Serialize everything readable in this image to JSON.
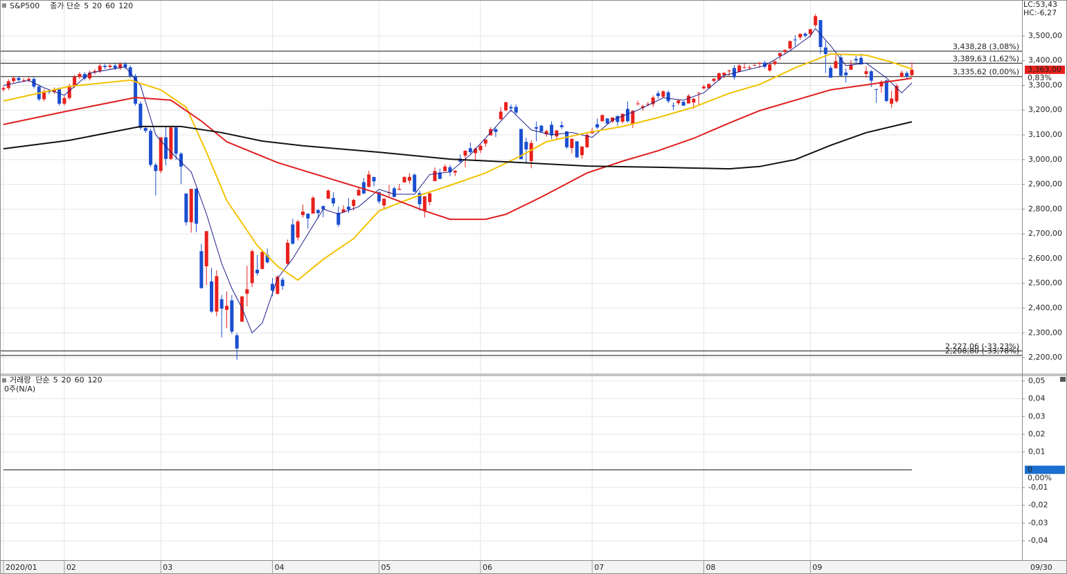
{
  "chart_data": [
    {
      "type": "candlestick",
      "title": "S&P500",
      "ma_label": "종가 단순",
      "up_color": "#e8201c",
      "down_color": "#1a4fd0",
      "open": [
        3283,
        3289,
        3317,
        3330,
        3321,
        3321,
        3326,
        3295,
        3244,
        3276,
        3273,
        3284,
        3226,
        3249,
        3298,
        3334,
        3346,
        3328,
        3352,
        3358,
        3379,
        3374,
        3380,
        3370,
        3386,
        3373,
        3338,
        3226,
        3128,
        3116,
        2979,
        2954,
        3090,
        3003,
        3130,
        3024,
        2863,
        2747,
        2882,
        2630,
        2569,
        2508,
        2386,
        2436,
        2393,
        2431,
        2290,
        2345,
        2458,
        2501,
        2555,
        2558,
        2614,
        2498,
        2458,
        2515,
        2579,
        2738,
        2685,
        2776,
        2782,
        2782,
        2796,
        2812,
        2842,
        2845,
        2785,
        2787,
        2810,
        2813,
        2855,
        2909,
        2890,
        2930,
        2869,
        2815,
        2868,
        2884,
        2878,
        2908,
        2915,
        2939,
        2865,
        2794,
        2829,
        2913,
        2948,
        2953,
        2969,
        2948,
        3004,
        3016,
        3046,
        3026,
        3038,
        3065,
        3098,
        3123,
        3163,
        3199,
        3213,
        3213,
        3124,
        3072,
        2994,
        3131,
        3137,
        3102,
        3141,
        3094,
        3139,
        3114,
        3047,
        3074,
        3018,
        3050,
        3106,
        3143,
        3155,
        3166,
        3154,
        3176,
        3153,
        3205,
        3142,
        3226,
        3209,
        3224,
        3224,
        3268,
        3254,
        3272,
        3219,
        3228,
        3234,
        3227,
        3231,
        3270,
        3288,
        3289,
        3318,
        3323,
        3341,
        3357,
        3370,
        3355,
        3372,
        3371,
        3380,
        3387,
        3392,
        3360,
        3386,
        3419,
        3435,
        3449,
        3485,
        3494,
        3509,
        3507,
        3543,
        3564,
        3453,
        3371,
        3369,
        3413,
        3352,
        3363,
        3407,
        3411,
        3346,
        3357,
        3285,
        3296,
        3320,
        3226,
        3236,
        3334,
        3350,
        3341
      ],
      "high": [
        3297,
        3325,
        3338,
        3338,
        3329,
        3334,
        3334,
        3303,
        3284,
        3284,
        3292,
        3292,
        3257,
        3306,
        3342,
        3354,
        3354,
        3360,
        3366,
        3387,
        3387,
        3388,
        3388,
        3394,
        3394,
        3381,
        3346,
        3234,
        3136,
        3124,
        2987,
        3091,
        3136,
        3131,
        3132,
        3030,
        2863,
        2882,
        2885,
        2660,
        2711,
        2562,
        2553,
        2453,
        2467,
        2453,
        2300,
        2449,
        2571,
        2637,
        2615,
        2632,
        2641,
        2522,
        2533,
        2524,
        2677,
        2761,
        2757,
        2819,
        2782,
        2853,
        2801,
        2815,
        2880,
        2868,
        2810,
        2816,
        2845,
        2842,
        2888,
        2926,
        2955,
        2930,
        2869,
        2844,
        2898,
        2891,
        2902,
        2932,
        2945,
        2945,
        2875,
        2852,
        2865,
        2968,
        2964,
        2981,
        2978,
        2957,
        3021,
        3037,
        3069,
        3049,
        3063,
        3081,
        3131,
        3129,
        3212,
        3233,
        3223,
        3223,
        3124,
        3089,
        3079,
        3154,
        3141,
        3121,
        3155,
        3120,
        3155,
        3115,
        3086,
        3074,
        3054,
        3112,
        3129,
        3166,
        3183,
        3168,
        3171,
        3179,
        3186,
        3235,
        3200,
        3238,
        3221,
        3233,
        3259,
        3278,
        3280,
        3280,
        3231,
        3242,
        3236,
        3264,
        3250,
        3272,
        3302,
        3307,
        3330,
        3352,
        3352,
        3364,
        3382,
        3387,
        3388,
        3381,
        3387,
        3395,
        3399,
        3390,
        3400,
        3432,
        3445,
        3481,
        3502,
        3510,
        3514,
        3528,
        3588,
        3564,
        3479,
        3381,
        3424,
        3425,
        3368,
        3402,
        3419,
        3428,
        3376,
        3362,
        3286,
        3320,
        3323,
        3278,
        3306,
        3360,
        3357,
        3393
      ],
      "low": [
        3275,
        3281,
        3309,
        3313,
        3313,
        3313,
        3287,
        3236,
        3236,
        3265,
        3265,
        3218,
        3218,
        3241,
        3290,
        3326,
        3320,
        3320,
        3344,
        3350,
        3366,
        3366,
        3362,
        3362,
        3365,
        3330,
        3218,
        3120,
        3108,
        2970,
        2855,
        2945,
        2977,
        2998,
        2999,
        2901,
        2734,
        2705,
        2707,
        2478,
        2492,
        2381,
        2367,
        2281,
        2319,
        2295,
        2191,
        2345,
        2407,
        2485,
        2531,
        2558,
        2580,
        2448,
        2455,
        2474,
        2574,
        2657,
        2673,
        2766,
        2721,
        2782,
        2762,
        2767,
        2842,
        2811,
        2728,
        2785,
        2784,
        2794,
        2855,
        2861,
        2888,
        2892,
        2822,
        2797,
        2852,
        2848,
        2878,
        2908,
        2903,
        2870,
        2793,
        2766,
        2816,
        2913,
        2922,
        2953,
        2933,
        2934,
        2987,
        2969,
        3023,
        2999,
        3026,
        3052,
        3098,
        3091,
        3163,
        3196,
        3193,
        3181,
        3001,
        2985,
        2965,
        3074,
        3109,
        3093,
        3083,
        3081,
        3123,
        3044,
        3025,
        3007,
        3004,
        3047,
        3105,
        3124,
        3155,
        3143,
        3148,
        3136,
        3146,
        3150,
        3128,
        3219,
        3197,
        3215,
        3213,
        3246,
        3250,
        3229,
        3200,
        3221,
        3218,
        3227,
        3205,
        3221,
        3284,
        3287,
        3310,
        3318,
        3329,
        3336,
        3323,
        3355,
        3368,
        3363,
        3379,
        3371,
        3369,
        3355,
        3380,
        3404,
        3425,
        3444,
        3458,
        3484,
        3493,
        3494,
        3535,
        3427,
        3350,
        3330,
        3369,
        3336,
        3310,
        3363,
        3388,
        3384,
        3331,
        3293,
        3229,
        3270,
        3232,
        3209,
        3229,
        3332,
        3327,
        3339
      ],
      "close": [
        3289,
        3317,
        3330,
        3321,
        3321,
        3326,
        3295,
        3244,
        3276,
        3273,
        3284,
        3226,
        3249,
        3298,
        3334,
        3346,
        3328,
        3352,
        3358,
        3379,
        3374,
        3380,
        3370,
        3386,
        3373,
        3338,
        3226,
        3128,
        3116,
        2979,
        2954,
        3090,
        3003,
        3130,
        3024,
        2972,
        2747,
        2882,
        2741,
        2481,
        2711,
        2386,
        2529,
        2398,
        2409,
        2305,
        2237,
        2447,
        2476,
        2630,
        2541,
        2627,
        2585,
        2471,
        2527,
        2489,
        2664,
        2660,
        2750,
        2790,
        2762,
        2846,
        2784,
        2800,
        2875,
        2823,
        2737,
        2799,
        2798,
        2837,
        2878,
        2863,
        2940,
        2912,
        2831,
        2842,
        2868,
        2849,
        2882,
        2930,
        2930,
        2870,
        2820,
        2852,
        2864,
        2954,
        2922,
        2972,
        2949,
        2955,
        2992,
        3036,
        3030,
        3044,
        3056,
        3081,
        3123,
        3112,
        3194,
        3232,
        3207,
        3190,
        3002,
        3041,
        3067,
        3125,
        3113,
        3115,
        3098,
        3118,
        3131,
        3050,
        3084,
        3009,
        3053,
        3100,
        3116,
        3130,
        3180,
        3146,
        3170,
        3152,
        3185,
        3155,
        3197,
        3227,
        3216,
        3225,
        3251,
        3257,
        3276,
        3236,
        3216,
        3239,
        3218,
        3258,
        3246,
        3271,
        3295,
        3306,
        3327,
        3349,
        3351,
        3360,
        3333,
        3380,
        3373,
        3373,
        3382,
        3390,
        3375,
        3385,
        3397,
        3431,
        3443,
        3479,
        3484,
        3508,
        3500,
        3527,
        3580,
        3455,
        3427,
        3331,
        3398,
        3339,
        3341,
        3383,
        3401,
        3385,
        3357,
        3319,
        3282,
        3315,
        3237,
        3247,
        3298,
        3351,
        3335,
        3363
      ],
      "series": [
        {
          "name": "5",
          "color": "#1c1c8a",
          "x": [
            0,
            5,
            8,
            12,
            17,
            24,
            27,
            30,
            33,
            37,
            40,
            43,
            45,
            47,
            49,
            51,
            54,
            57,
            60,
            63,
            66,
            70,
            74,
            77,
            81,
            84,
            88,
            92,
            96,
            100,
            104,
            108,
            112,
            116,
            120,
            125,
            130,
            134,
            138,
            142,
            146,
            150,
            155,
            159,
            160,
            163,
            166,
            170,
            174,
            177,
            179
          ],
          "values": [
            3300,
            3320,
            3290,
            3260,
            3350,
            3375,
            3300,
            3100,
            3030,
            2950,
            2780,
            2580,
            2480,
            2400,
            2300,
            2340,
            2520,
            2600,
            2700,
            2800,
            2780,
            2810,
            2880,
            2860,
            2860,
            2940,
            2950,
            3020,
            3110,
            3200,
            3120,
            3100,
            3110,
            3090,
            3160,
            3200,
            3250,
            3240,
            3270,
            3340,
            3360,
            3380,
            3440,
            3500,
            3530,
            3460,
            3380,
            3390,
            3330,
            3270,
            3310
          ]
        },
        {
          "name": "20",
          "color": "#f2c200",
          "x": [
            0,
            13,
            25,
            31,
            36,
            40,
            44,
            50,
            54,
            58,
            63,
            69,
            74,
            81,
            88,
            95,
            102,
            107,
            115,
            122,
            129,
            136,
            143,
            149,
            156,
            163,
            170,
            175,
            179
          ],
          "values": [
            3237,
            3296,
            3321,
            3282,
            3212,
            3030,
            2835,
            2653,
            2569,
            2513,
            2597,
            2681,
            2793,
            2849,
            2896,
            2946,
            3016,
            3072,
            3109,
            3134,
            3170,
            3212,
            3268,
            3304,
            3371,
            3427,
            3422,
            3394,
            3366
          ]
        },
        {
          "name": "60",
          "color": "#e01e1e",
          "x": [
            0,
            13,
            26,
            33,
            39,
            44,
            54,
            65,
            74,
            83,
            88,
            95,
            99,
            106,
            115,
            122,
            129,
            136,
            143,
            149,
            156,
            163,
            170,
            179
          ],
          "values": [
            3142,
            3198,
            3251,
            3240,
            3156,
            3072,
            2988,
            2919,
            2863,
            2793,
            2759,
            2759,
            2779,
            2849,
            2946,
            2994,
            3036,
            3086,
            3148,
            3198,
            3240,
            3282,
            3302,
            3329
          ]
        },
        {
          "name": "120",
          "color": "#111111",
          "x": [
            0,
            13,
            27,
            35,
            43,
            51,
            59,
            74,
            88,
            102,
            115,
            129,
            143,
            149,
            156,
            163,
            170,
            179
          ],
          "values": [
            3044,
            3078,
            3134,
            3134,
            3109,
            3075,
            3056,
            3030,
            3002,
            2988,
            2974,
            2969,
            2963,
            2972,
            3000,
            3058,
            3109,
            3153
          ]
        }
      ],
      "xlim": [
        -0.682,
        200.7
      ],
      "xticks": [
        {
          "value": 0,
          "label": "2020/01"
        },
        {
          "value": 12,
          "label": "02"
        },
        {
          "value": 31,
          "label": "03"
        },
        {
          "value": 53,
          "label": "04"
        },
        {
          "value": 74,
          "label": "05"
        },
        {
          "value": 94,
          "label": "06"
        },
        {
          "value": 116,
          "label": "07"
        },
        {
          "value": 138,
          "label": "08"
        },
        {
          "value": 159,
          "label": "09"
        }
      ],
      "last_date": "09/30",
      "ylim": [
        2136,
        3645
      ],
      "yticks": [
        {
          "value": 2200,
          "label": "2,200,00"
        },
        {
          "value": 2300,
          "label": "2,300,00"
        },
        {
          "value": 2400,
          "label": "2,400,00"
        },
        {
          "value": 2500,
          "label": "2,500,00"
        },
        {
          "value": 2600,
          "label": "2,600,00"
        },
        {
          "value": 2700,
          "label": "2,700,00"
        },
        {
          "value": 2800,
          "label": "2,800,00"
        },
        {
          "value": 2900,
          "label": "2,900,00"
        },
        {
          "value": 3000,
          "label": "3,000,00"
        },
        {
          "value": 3100,
          "label": "3,100,00"
        },
        {
          "value": 3200,
          "label": "3,200,00"
        },
        {
          "value": 3300,
          "label": "3,300,00"
        },
        {
          "value": 3400,
          "label": "3,400,00"
        },
        {
          "value": 3500,
          "label": "3,500,00"
        }
      ],
      "grid": true,
      "ref_lines": [
        {
          "value": 3438.28,
          "label": "3,438,28 (3,08%)"
        },
        {
          "value": 3389.63,
          "label": "3,389,63 (1,62%)"
        },
        {
          "value": 3335.62,
          "label": "3,335,62 (0,00%)"
        },
        {
          "value": 2227.06,
          "label": "2,227,06 (-33,23%)"
        },
        {
          "value": 2208.8,
          "label": "2,208,80 (-33,78%)"
        }
      ],
      "last_price": {
        "value": 3363,
        "label": "3,363,00"
      },
      "change_label": "0,83%",
      "lc_label": "LC:53,43",
      "hc_label": "HC:-6,27"
    },
    {
      "type": "bar",
      "title": "거래량",
      "title_color": "#129a9a",
      "ma_label": "단순",
      "status": "0주(N/A)",
      "series": [
        {
          "name": "5",
          "color": "#1c1c8a"
        },
        {
          "name": "20",
          "color": "#e01e1e"
        },
        {
          "name": "60",
          "color": "#1a9a1a"
        },
        {
          "name": "120",
          "color": "#111111"
        }
      ],
      "ylim": [
        -0.0509,
        0.0531
      ],
      "yticks": [
        {
          "value": 0.05,
          "label": "0,05"
        },
        {
          "value": 0.04,
          "label": "0,04"
        },
        {
          "value": 0.03,
          "label": "0,03"
        },
        {
          "value": 0.02,
          "label": "0,02"
        },
        {
          "value": 0.01,
          "label": "0,01"
        },
        {
          "value": -0.01,
          "label": "-0,01"
        },
        {
          "value": -0.02,
          "label": "-0,02"
        },
        {
          "value": -0.03,
          "label": "-0,03"
        },
        {
          "value": -0.04,
          "label": "-0,04"
        }
      ],
      "zero": {
        "value": 0,
        "label": "0"
      },
      "zero_pct": "0,00%",
      "grid": true
    }
  ]
}
